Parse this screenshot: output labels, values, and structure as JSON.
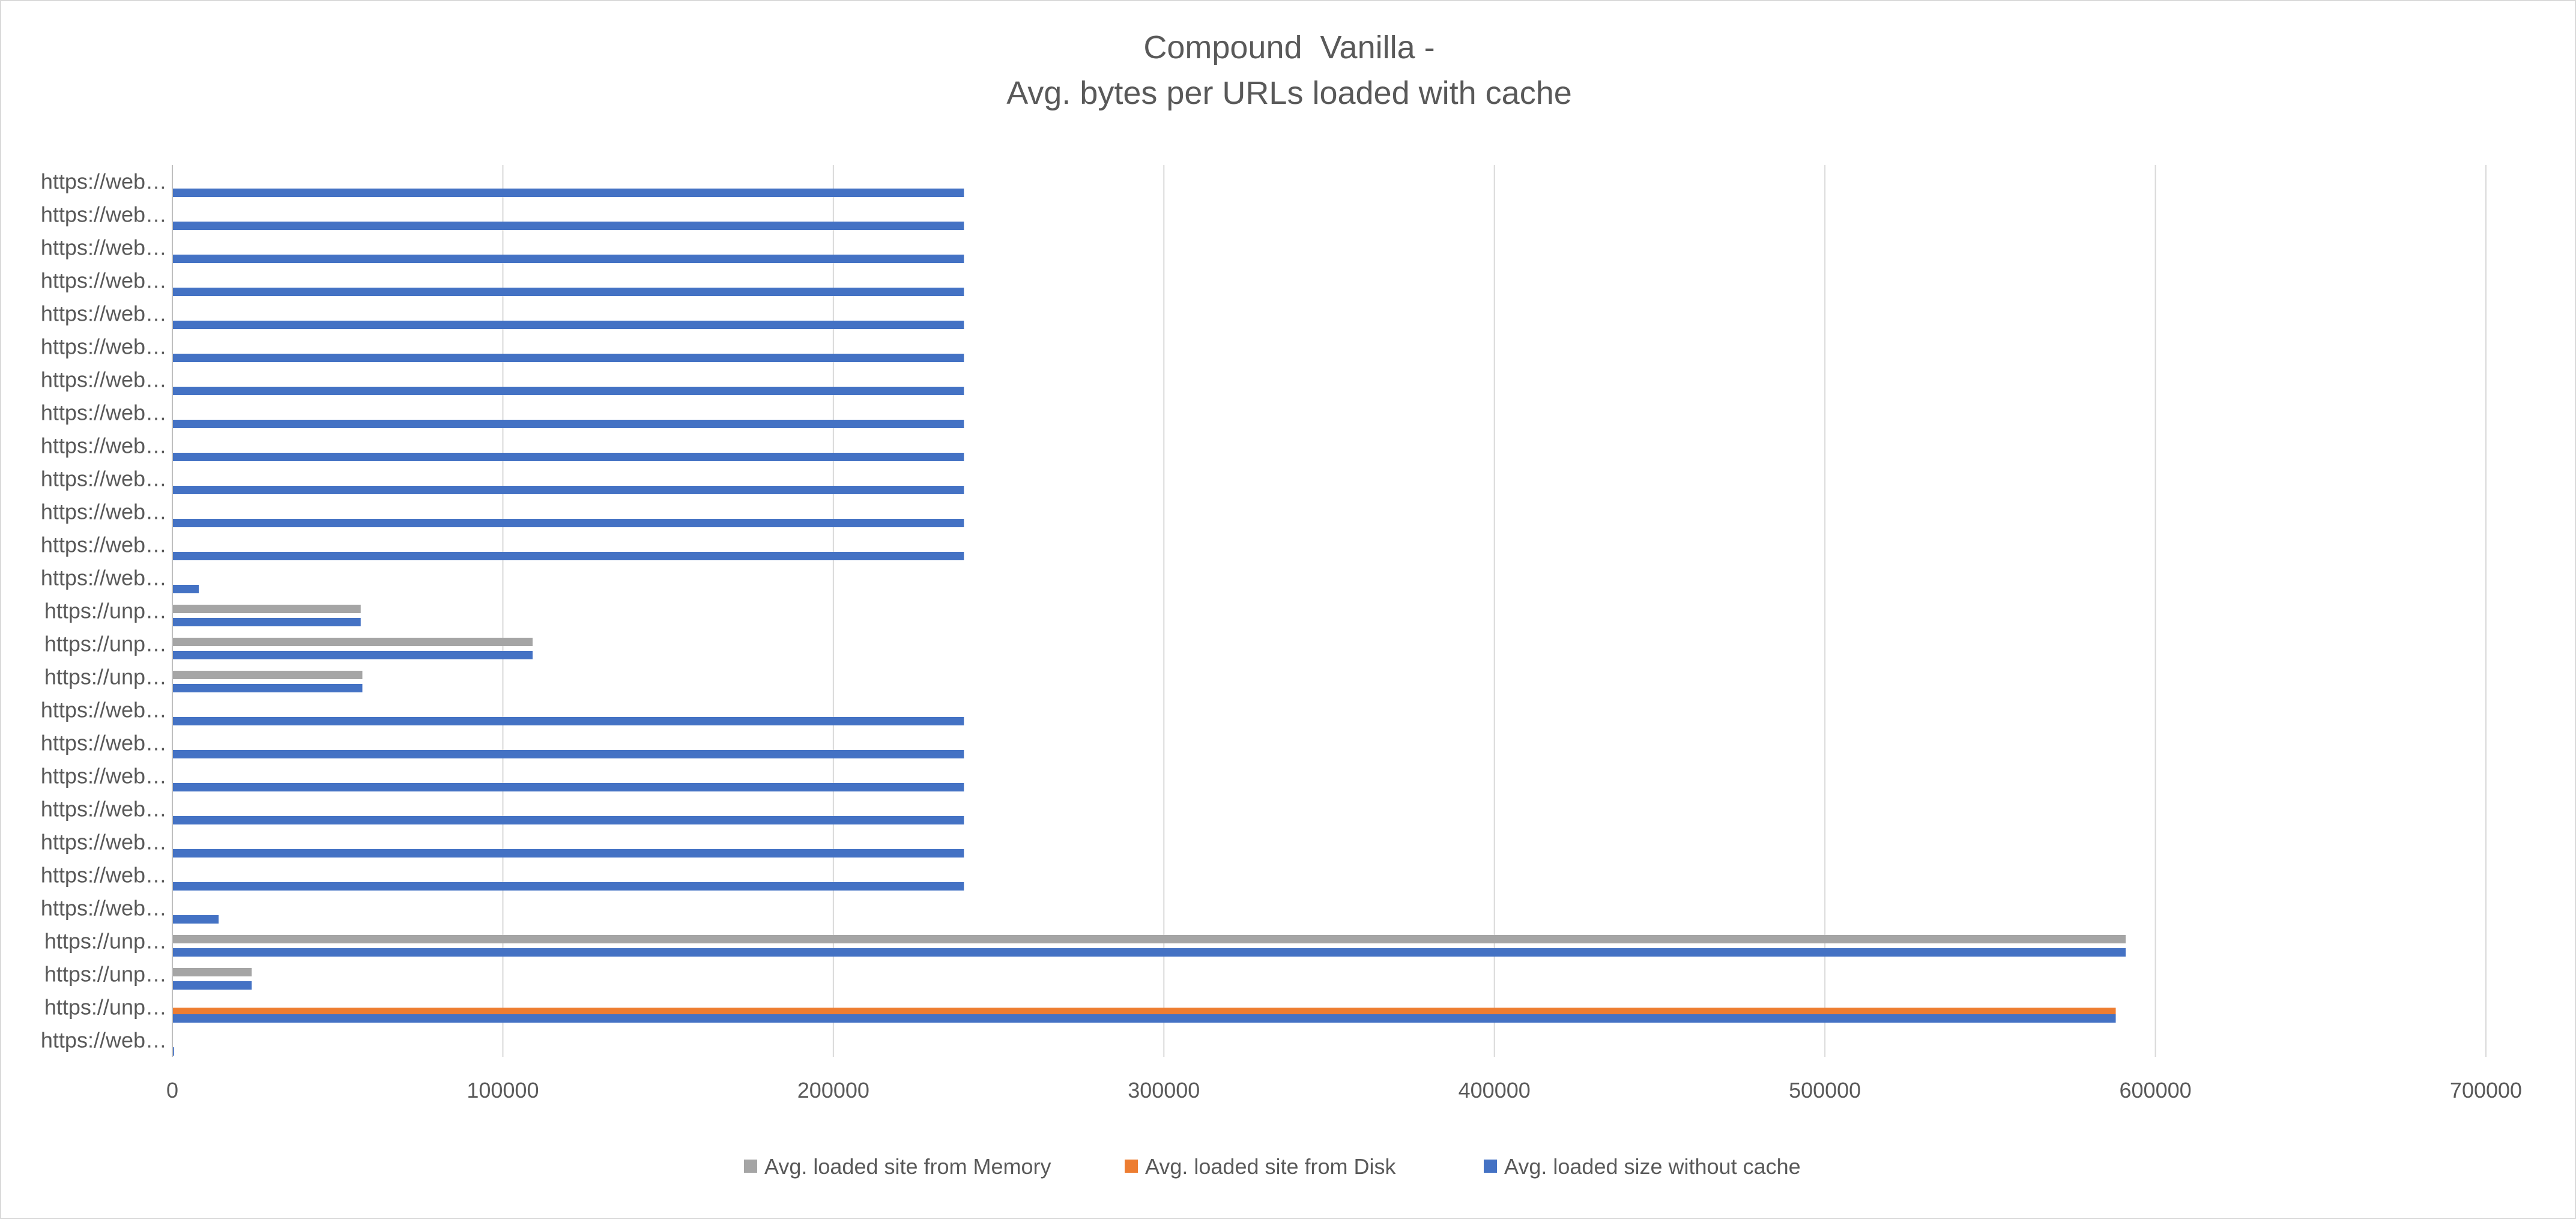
{
  "chart_data": {
    "type": "bar",
    "orientation": "horizontal",
    "title_lines": [
      "Compound  Vanilla -",
      "Avg. bytes per URLs loaded with cache"
    ],
    "xlim": [
      0,
      700000
    ],
    "xticks": [
      0,
      100000,
      200000,
      300000,
      400000,
      500000,
      600000,
      700000
    ],
    "grid": true,
    "legend_position": "bottom",
    "categories": [
      "https://web…",
      "https://web…",
      "https://web…",
      "https://web…",
      "https://web…",
      "https://web…",
      "https://web…",
      "https://web…",
      "https://web…",
      "https://web…",
      "https://web…",
      "https://web…",
      "https://web…",
      "https://unp…",
      "https://unp…",
      "https://unp…",
      "https://web…",
      "https://web…",
      "https://web…",
      "https://web…",
      "https://web…",
      "https://web…",
      "https://web…",
      "https://unp…",
      "https://unp…",
      "https://unp…",
      "https://web…"
    ],
    "series": [
      {
        "name": "Avg. loaded site from Memory",
        "color": "#a5a5a5",
        "values": [
          0,
          0,
          0,
          0,
          0,
          0,
          0,
          0,
          0,
          0,
          0,
          0,
          0,
          57000,
          109000,
          57500,
          0,
          0,
          0,
          0,
          0,
          0,
          0,
          591000,
          24000,
          0,
          0
        ]
      },
      {
        "name": "Avg. loaded site from Disk",
        "color": "#ed7d31",
        "values": [
          0,
          0,
          0,
          0,
          0,
          0,
          0,
          0,
          0,
          0,
          0,
          0,
          0,
          0,
          0,
          0,
          0,
          0,
          0,
          0,
          0,
          0,
          0,
          0,
          0,
          588000,
          0
        ]
      },
      {
        "name": "Avg. loaded size without cache",
        "color": "#4472c4",
        "values": [
          239500,
          239500,
          239500,
          239500,
          239500,
          239500,
          239500,
          239500,
          239500,
          239500,
          239500,
          239500,
          8000,
          57000,
          109000,
          57500,
          239500,
          239500,
          239500,
          239500,
          239500,
          239500,
          14000,
          591000,
          24000,
          588000,
          500
        ]
      }
    ]
  }
}
